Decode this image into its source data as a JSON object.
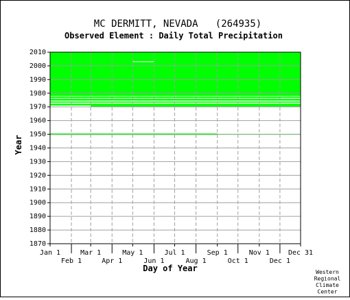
{
  "chart_data": {
    "type": "heatmap",
    "title": "MC DERMITT, NEVADA   (264935)",
    "subtitle": "Observed Element : Daily Total Precipitation",
    "xlabel": "Day of Year",
    "ylabel": "Year",
    "ylim": [
      1870,
      2010
    ],
    "yticks": [
      1870,
      1880,
      1890,
      1900,
      1910,
      1920,
      1930,
      1940,
      1950,
      1960,
      1970,
      1980,
      1990,
      2000,
      2010
    ],
    "xlim": [
      1,
      365
    ],
    "xticks_top": [
      {
        "label": "Jan 1",
        "day": 1
      },
      {
        "label": "Mar 1",
        "day": 60
      },
      {
        "label": "May 1",
        "day": 121
      },
      {
        "label": "Jul 1",
        "day": 182
      },
      {
        "label": "Sep 1",
        "day": 244
      },
      {
        "label": "Nov 1",
        "day": 305
      },
      {
        "label": "Dec 31",
        "day": 365
      }
    ],
    "xticks_bottom": [
      {
        "label": "Feb 1",
        "day": 32
      },
      {
        "label": "Apr 1",
        "day": 91
      },
      {
        "label": "Jun 1",
        "day": 152
      },
      {
        "label": "Aug 1",
        "day": 213
      },
      {
        "label": "Oct 1",
        "day": 274
      },
      {
        "label": "Dec 1",
        "day": 335
      }
    ],
    "grid": true,
    "data_color": "#00ff00",
    "grid_color": "#a0a0a0",
    "observed_bands": [
      {
        "year_start": 1978,
        "year_end": 2010,
        "day_start": 1,
        "day_end": 365
      },
      {
        "year_start": 1976.5,
        "year_end": 1977.6,
        "day_start": 1,
        "day_end": 365
      },
      {
        "year_start": 1974.6,
        "year_end": 1976.0,
        "day_start": 1,
        "day_end": 365
      },
      {
        "year_start": 1973.0,
        "year_end": 1974.0,
        "day_start": 1,
        "day_end": 365
      },
      {
        "year_start": 1970.2,
        "year_end": 1972.4,
        "day_start": 60,
        "day_end": 365
      },
      {
        "year_start": 1971.0,
        "year_end": 1972.4,
        "day_start": 1,
        "day_end": 60
      },
      {
        "year_start": 1949.5,
        "year_end": 1950.6,
        "day_start": 1,
        "day_end": 244
      },
      {
        "year_start": 1949.7,
        "year_end": 1950.3,
        "day_start": 244,
        "day_end": 365
      }
    ],
    "gaps": [
      {
        "year_start": 2002.8,
        "year_end": 2003.3,
        "day_start": 121,
        "day_end": 152
      },
      {
        "year_start": 1976.0,
        "year_end": 1976.5,
        "day_start": 335,
        "day_end": 365
      },
      {
        "year_start": 1972.4,
        "year_end": 1973.0,
        "day_start": 1,
        "day_end": 365
      }
    ]
  },
  "credit": [
    "Western",
    "Regional",
    "Climate",
    "Center"
  ]
}
